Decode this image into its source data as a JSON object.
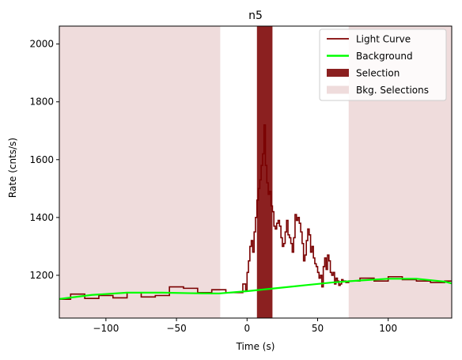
{
  "chart_data": {
    "type": "line",
    "title": "n5",
    "xlabel": "Time (s)",
    "ylabel": "Rate (cnts/s)",
    "xlim": [
      -133,
      145
    ],
    "ylim": [
      1052,
      2062
    ],
    "xticks": [
      -100,
      -50,
      0,
      50,
      100
    ],
    "yticks": [
      1200,
      1400,
      1600,
      1800,
      2000
    ],
    "grid": false,
    "legend_position": "top-right",
    "legend": [
      {
        "label": "Light Curve",
        "kind": "line",
        "color": "#800000"
      },
      {
        "label": "Background",
        "kind": "line",
        "color": "#00ff00"
      },
      {
        "label": "Selection",
        "kind": "patch",
        "color": "#8b2020"
      },
      {
        "label": "Bkg. Selections",
        "kind": "patch",
        "color": "#efdcdc"
      }
    ],
    "selection": {
      "x_start": 7,
      "x_end": 18,
      "color": "#8b2020"
    },
    "bkg_selections": [
      {
        "x_start": -133,
        "x_end": -19
      },
      {
        "x_start": 72,
        "x_end": 145
      }
    ],
    "light_curve": {
      "color": "#7a0000",
      "x": [
        -133,
        -125,
        -115,
        -105,
        -95,
        -85,
        -75,
        -65,
        -55,
        -45,
        -35,
        -25,
        -15,
        -5,
        -3,
        -1,
        0,
        1,
        2,
        3,
        4,
        5,
        6,
        7,
        8,
        9,
        10,
        11,
        12,
        13,
        14,
        15,
        16,
        17,
        18,
        19,
        20,
        21,
        22,
        23,
        24,
        25,
        26,
        27,
        28,
        29,
        30,
        31,
        32,
        33,
        34,
        35,
        36,
        37,
        38,
        39,
        40,
        41,
        42,
        43,
        44,
        45,
        46,
        47,
        48,
        49,
        50,
        51,
        52,
        53,
        54,
        55,
        56,
        57,
        58,
        59,
        60,
        61,
        62,
        63,
        64,
        65,
        66,
        67,
        68,
        70,
        72,
        80,
        90,
        100,
        110,
        120,
        130,
        140,
        145
      ],
      "y": [
        1117,
        1135,
        1120,
        1130,
        1122,
        1140,
        1125,
        1130,
        1160,
        1155,
        1140,
        1150,
        1140,
        1140,
        1170,
        1150,
        1210,
        1250,
        1300,
        1320,
        1280,
        1350,
        1400,
        1460,
        1500,
        1530,
        1580,
        1620,
        1720,
        1580,
        1520,
        1480,
        1490,
        1440,
        1420,
        1370,
        1360,
        1380,
        1390,
        1370,
        1330,
        1300,
        1310,
        1350,
        1390,
        1340,
        1330,
        1310,
        1280,
        1330,
        1410,
        1390,
        1400,
        1380,
        1350,
        1310,
        1250,
        1270,
        1320,
        1360,
        1340,
        1280,
        1300,
        1260,
        1240,
        1230,
        1210,
        1190,
        1200,
        1160,
        1230,
        1260,
        1220,
        1270,
        1250,
        1210,
        1200,
        1210,
        1170,
        1190,
        1180,
        1165,
        1170,
        1185,
        1180,
        1175,
        1180,
        1190,
        1180,
        1195,
        1185,
        1180,
        1175,
        1180,
        1180
      ]
    },
    "background": {
      "color": "#00ff00",
      "x": [
        -133,
        -110,
        -85,
        -60,
        -40,
        -20,
        0,
        20,
        40,
        60,
        80,
        100,
        120,
        140,
        145
      ],
      "y": [
        1118,
        1132,
        1140,
        1140,
        1138,
        1137,
        1145,
        1155,
        1165,
        1175,
        1182,
        1188,
        1188,
        1178,
        1172
      ]
    }
  }
}
